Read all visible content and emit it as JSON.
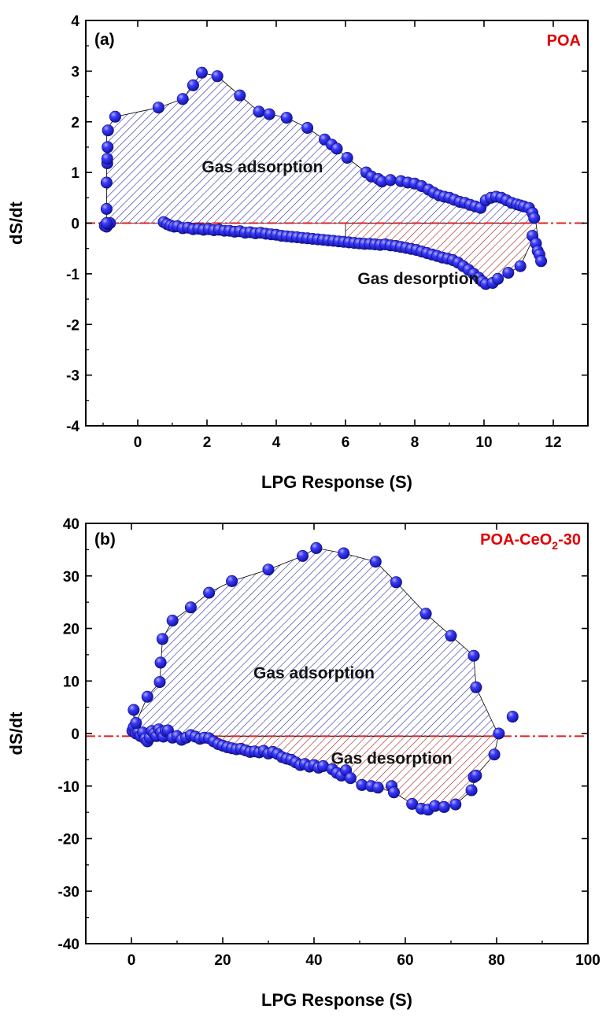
{
  "colors": {
    "marker": "#1a1aee",
    "marker_highlight": "#b0b0ff",
    "adsorption_hatch": "#2a2aa0",
    "desorption_hatch": "#a02020",
    "reference_line": "#e02020",
    "sample_label": "#e00000"
  },
  "chart_data": [
    {
      "type": "scatter",
      "panel_label": "(a)",
      "sample_label": "POA",
      "xlabel": "LPG Response (S)",
      "ylabel": "dS/dt",
      "xlim": [
        -1.5,
        13
      ],
      "ylim": [
        -4,
        4
      ],
      "xticks": [
        0,
        2,
        4,
        6,
        8,
        10,
        12
      ],
      "xtick_labels": [
        "0",
        "2",
        "4",
        "6",
        "8",
        "10",
        "12"
      ],
      "yticks": [
        -4,
        -3,
        -2,
        -1,
        0,
        1,
        2,
        3,
        4
      ],
      "ytick_labels": [
        "-4",
        "-3",
        "-2",
        "-1",
        "0",
        "1",
        "2",
        "3",
        "4"
      ],
      "reference_line_y": 0,
      "annotations": [
        {
          "text": "Gas adsorption",
          "x": 3.6,
          "y": 1.0
        },
        {
          "text": "Gas desorption",
          "x": 8.1,
          "y": -1.2
        }
      ],
      "adsorption": {
        "x": [
          -0.9,
          -0.9,
          -0.9,
          -0.88,
          -0.88,
          -0.87,
          -0.86,
          -0.65,
          0.6,
          1.3,
          1.6,
          1.85,
          2.3,
          2.95,
          3.5,
          3.8,
          4.3,
          4.9,
          5.4,
          5.6,
          5.75,
          6.05,
          6.6,
          6.75,
          6.95,
          7.05,
          7.3,
          7.6,
          7.8,
          8.0,
          8.2,
          8.4,
          8.55,
          8.7,
          8.85,
          9.0,
          9.15,
          9.3,
          9.45,
          9.6,
          9.75,
          9.9,
          10.05,
          10.2,
          10.35,
          10.5,
          10.65,
          10.8,
          10.95,
          11.05,
          11.15,
          11.3,
          11.4,
          11.45
        ],
        "y": [
          0.0,
          0.28,
          0.8,
          1.18,
          1.27,
          1.5,
          1.83,
          2.1,
          2.28,
          2.45,
          2.72,
          2.97,
          2.9,
          2.52,
          2.2,
          2.15,
          2.08,
          1.88,
          1.65,
          1.55,
          1.47,
          1.29,
          1.0,
          0.92,
          0.87,
          0.82,
          0.85,
          0.83,
          0.8,
          0.78,
          0.73,
          0.66,
          0.6,
          0.55,
          0.52,
          0.5,
          0.46,
          0.42,
          0.4,
          0.36,
          0.33,
          0.3,
          0.45,
          0.5,
          0.52,
          0.5,
          0.45,
          0.4,
          0.37,
          0.35,
          0.33,
          0.3,
          0.2,
          0.1
        ],
        "hatch_boundary_x": [
          -0.9,
          -0.9,
          -0.65,
          0.6,
          1.3,
          1.85,
          2.3,
          2.95,
          3.5,
          4.3,
          4.9,
          5.6,
          6.05,
          6.6,
          7.0,
          8.0,
          8.7,
          9.3,
          9.75,
          9.95,
          10.2,
          10.5,
          11.05,
          11.45,
          11.45
        ],
        "hatch_boundary_y": [
          0,
          1.83,
          2.1,
          2.28,
          2.45,
          2.97,
          2.9,
          2.52,
          2.2,
          2.08,
          1.88,
          1.55,
          1.29,
          1.0,
          0.87,
          0.78,
          0.55,
          0.42,
          0.33,
          0.28,
          0.5,
          0.5,
          0.35,
          0.25,
          0
        ]
      },
      "desorption": {
        "x": [
          -0.95,
          -0.9,
          -0.85,
          -0.8,
          0.75,
          0.85,
          0.95,
          1.05,
          1.15,
          1.3,
          1.45,
          1.6,
          1.75,
          1.9,
          2.05,
          2.2,
          2.35,
          2.5,
          2.65,
          2.8,
          2.95,
          3.1,
          3.25,
          3.4,
          3.55,
          3.7,
          3.85,
          4.0,
          4.15,
          4.3,
          4.45,
          4.6,
          4.75,
          4.9,
          5.05,
          5.2,
          5.35,
          5.5,
          5.65,
          5.8,
          5.95,
          6.1,
          6.25,
          6.4,
          6.55,
          6.7,
          6.85,
          7.0,
          7.15,
          7.3,
          7.45,
          7.6,
          7.75,
          7.9,
          8.05,
          8.2,
          8.35,
          8.5,
          8.65,
          8.8,
          8.95,
          9.1,
          9.25,
          9.4,
          9.55,
          9.7,
          9.85,
          9.95,
          10.05,
          10.25,
          10.4,
          10.7,
          11.05,
          11.4,
          11.5,
          11.55,
          11.6,
          11.65
        ],
        "y": [
          -0.05,
          -0.07,
          -0.02,
          0.0,
          0.02,
          -0.02,
          -0.05,
          -0.07,
          -0.06,
          -0.1,
          -0.09,
          -0.12,
          -0.11,
          -0.13,
          -0.12,
          -0.14,
          -0.13,
          -0.15,
          -0.15,
          -0.17,
          -0.16,
          -0.19,
          -0.18,
          -0.2,
          -0.19,
          -0.21,
          -0.22,
          -0.23,
          -0.25,
          -0.26,
          -0.27,
          -0.28,
          -0.29,
          -0.3,
          -0.31,
          -0.32,
          -0.33,
          -0.34,
          -0.35,
          -0.36,
          -0.37,
          -0.38,
          -0.39,
          -0.4,
          -0.41,
          -0.41,
          -0.42,
          -0.43,
          -0.42,
          -0.44,
          -0.45,
          -0.47,
          -0.49,
          -0.51,
          -0.53,
          -0.56,
          -0.59,
          -0.62,
          -0.65,
          -0.68,
          -0.7,
          -0.73,
          -0.78,
          -0.85,
          -0.92,
          -1.0,
          -1.08,
          -1.15,
          -1.2,
          -1.18,
          -1.1,
          -0.98,
          -0.85,
          -0.25,
          -0.4,
          -0.55,
          -0.62,
          -0.75
        ],
        "hatch_boundary_x": [
          6.0,
          7.0,
          8.0,
          8.65,
          9.25,
          9.85,
          10.05,
          10.4,
          10.7,
          11.05,
          11.45,
          11.65,
          11.5,
          6.0
        ],
        "hatch_boundary_y": [
          -0.38,
          -0.43,
          -0.53,
          -0.65,
          -0.78,
          -1.08,
          -1.2,
          -1.1,
          -0.98,
          -0.85,
          -0.25,
          -0.75,
          0,
          0
        ]
      }
    },
    {
      "type": "scatter",
      "panel_label": "(b)",
      "sample_label_main": "POA-CeO",
      "sample_label_sub": "2",
      "sample_label_tail": "-30",
      "xlabel": "LPG Response (S)",
      "ylabel": "dS/dt",
      "xlim": [
        -10,
        100
      ],
      "ylim": [
        -40,
        40
      ],
      "xticks": [
        0,
        20,
        40,
        60,
        80,
        100
      ],
      "xtick_labels": [
        "0",
        "20",
        "40",
        "60",
        "80",
        "100"
      ],
      "yticks": [
        -40,
        -30,
        -20,
        -10,
        0,
        10,
        20,
        30,
        40
      ],
      "ytick_labels": [
        "-40",
        "-30",
        "-20",
        "-10",
        "0",
        "10",
        "20",
        "30",
        "40"
      ],
      "reference_line_y": -0.5,
      "annotations": [
        {
          "text": "Gas adsorption",
          "x": 40.0,
          "y": 10.5
        },
        {
          "text": "Gas desorption",
          "x": 57.0,
          "y": -5.8
        }
      ],
      "adsorption": {
        "x": [
          0.5,
          1.0,
          3.5,
          6.2,
          6.4,
          6.8,
          9.0,
          13.0,
          17.0,
          22.0,
          30.0,
          37.5,
          40.5,
          46.5,
          53.5,
          58.0,
          64.5,
          70.0,
          75.0,
          75.5,
          83.5
        ],
        "y": [
          4.5,
          2.0,
          7.0,
          9.8,
          13.5,
          18.0,
          21.5,
          24.0,
          26.8,
          29.0,
          31.2,
          33.8,
          35.3,
          34.3,
          32.7,
          28.8,
          22.8,
          18.6,
          14.8,
          8.8,
          3.2
        ],
        "hatch_boundary_x": [
          0.5,
          1.0,
          3.5,
          6.2,
          6.8,
          9.0,
          13.0,
          17.0,
          22.0,
          30.0,
          37.5,
          40.5,
          46.5,
          53.5,
          58.0,
          64.5,
          70.0,
          75.0,
          75.5,
          80.0,
          80.0,
          20.0,
          0.5
        ],
        "hatch_boundary_y": [
          4.5,
          2.0,
          7.0,
          9.8,
          18.0,
          21.5,
          24.0,
          26.8,
          29.0,
          31.2,
          33.8,
          35.3,
          34.3,
          32.7,
          28.8,
          22.8,
          18.6,
          14.8,
          8.8,
          0.5,
          -0.5,
          -0.5,
          -0.5
        ]
      },
      "desorption": {
        "x": [
          0.2,
          0.5,
          1.0,
          1.5,
          2.0,
          2.5,
          3.0,
          3.5,
          4.0,
          4.5,
          5.0,
          5.5,
          6.0,
          6.5,
          7.0,
          7.5,
          8.0,
          9.0,
          10.0,
          11.0,
          12.0,
          13.0,
          14.0,
          15.0,
          16.0,
          17.0,
          18.0,
          19.0,
          20.0,
          21.0,
          22.0,
          23.0,
          24.0,
          25.0,
          26.0,
          27.0,
          28.0,
          29.0,
          30.0,
          31.0,
          32.0,
          33.0,
          34.0,
          35.0,
          36.0,
          37.0,
          38.0,
          39.0,
          40.0,
          41.0,
          42.0,
          44.0,
          45.0,
          46.0,
          47.0,
          48.0,
          50.5,
          52.5,
          54.0,
          57.0,
          57.5,
          61.5,
          63.5,
          65.0,
          66.5,
          68.5,
          71.0,
          74.5,
          75.0,
          75.5,
          79.5,
          80.5
        ],
        "y": [
          0.5,
          1.2,
          0.0,
          0.3,
          -0.5,
          0.2,
          -1.0,
          -1.5,
          -0.8,
          0.5,
          0.0,
          -0.5,
          0.8,
          0.2,
          -0.6,
          0.5,
          0.6,
          -0.8,
          -0.5,
          -1.2,
          -0.8,
          -0.3,
          -0.6,
          -1.0,
          -0.8,
          -0.9,
          -1.5,
          -2.0,
          -2.3,
          -2.6,
          -2.8,
          -3.0,
          -2.9,
          -3.2,
          -3.5,
          -3.4,
          -3.6,
          -3.3,
          -3.8,
          -3.5,
          -3.9,
          -4.5,
          -4.8,
          -5.0,
          -5.5,
          -6.0,
          -5.8,
          -6.3,
          -6.0,
          -6.5,
          -6.2,
          -6.8,
          -7.5,
          -8.0,
          -7.0,
          -8.5,
          -9.8,
          -10.0,
          -10.3,
          -10.0,
          -11.2,
          -13.4,
          -14.3,
          -14.5,
          -13.8,
          -14.0,
          -13.5,
          -10.8,
          -8.3,
          -8.0,
          -4.0,
          0.0
        ],
        "hatch_boundary_x": [
          18.0,
          22.0,
          26.0,
          30.0,
          34.0,
          38.0,
          42.0,
          46.0,
          50.5,
          54.0,
          57.5,
          61.5,
          65.0,
          68.5,
          71.0,
          74.5,
          75.5,
          79.5,
          80.5,
          80.5,
          18.0
        ],
        "hatch_boundary_y": [
          -1.5,
          -2.8,
          -3.5,
          -3.8,
          -4.8,
          -5.8,
          -6.2,
          -8.0,
          -9.8,
          -10.3,
          -11.2,
          -13.4,
          -14.5,
          -14.0,
          -13.5,
          -10.8,
          -8.0,
          -4.0,
          0.0,
          -0.5,
          -0.5
        ]
      }
    }
  ]
}
